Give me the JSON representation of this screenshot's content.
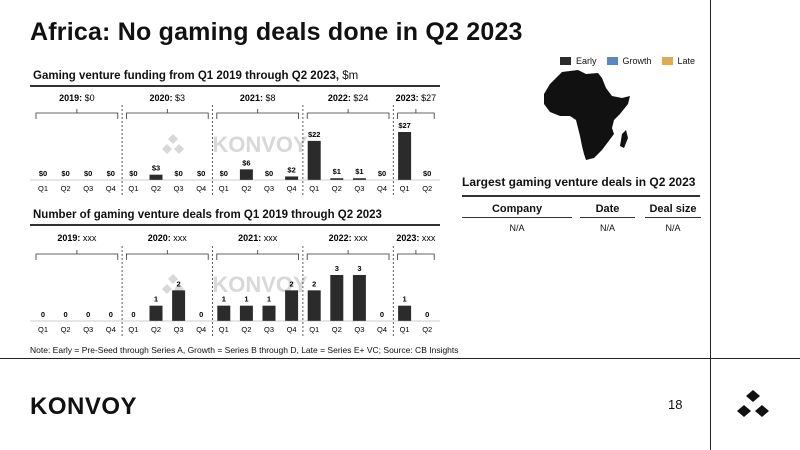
{
  "title": "Africa: No gaming deals done in Q2 2023",
  "legend": [
    {
      "label": "Early",
      "color": "#2b2b2b"
    },
    {
      "label": "Growth",
      "color": "#5a86c2"
    },
    {
      "label": "Late",
      "color": "#e0aa4f"
    }
  ],
  "chart_data": [
    {
      "type": "bar",
      "title_bold": "Gaming venture funding from Q1 2019 through Q2 2023,",
      "title_unit": " $m",
      "watermark": "KONVOY",
      "years": [
        {
          "label": "2019:",
          "total": "$0"
        },
        {
          "label": "2020:",
          "total": "$3"
        },
        {
          "label": "2021:",
          "total": "$8"
        },
        {
          "label": "2022:",
          "total": "$24"
        },
        {
          "label": "2023:",
          "total": "$27"
        }
      ],
      "categories": [
        "Q1",
        "Q2",
        "Q3",
        "Q4",
        "Q1",
        "Q2",
        "Q3",
        "Q4",
        "Q1",
        "Q2",
        "Q3",
        "Q4",
        "Q1",
        "Q2",
        "Q3",
        "Q4",
        "Q1",
        "Q2"
      ],
      "values": [
        0,
        0,
        0,
        0,
        0,
        3,
        0,
        0,
        0,
        6,
        0,
        2,
        22,
        1,
        1,
        0,
        27,
        0
      ],
      "value_labels": [
        "$0",
        "$0",
        "$0",
        "$0",
        "$0",
        "$3",
        "$0",
        "$0",
        "$0",
        "$6",
        "$0",
        "$2",
        "$22",
        "$1",
        "$1",
        "$0",
        "$27",
        "$0"
      ],
      "ylim": [
        0,
        27
      ]
    },
    {
      "type": "bar",
      "title_bold": "Number of gaming venture deals from Q1 2019 through Q2 2023",
      "title_unit": "",
      "watermark": "KONVOY",
      "years": [
        {
          "label": "2019:",
          "total": "xxx"
        },
        {
          "label": "2020:",
          "total": "xxx"
        },
        {
          "label": "2021:",
          "total": "xxx"
        },
        {
          "label": "2022:",
          "total": "xxx"
        },
        {
          "label": "2023:",
          "total": "xxx"
        }
      ],
      "categories": [
        "Q1",
        "Q2",
        "Q3",
        "Q4",
        "Q1",
        "Q2",
        "Q3",
        "Q4",
        "Q1",
        "Q2",
        "Q3",
        "Q4",
        "Q1",
        "Q2",
        "Q3",
        "Q4",
        "Q1",
        "Q2"
      ],
      "values": [
        0,
        0,
        0,
        0,
        0,
        1,
        2,
        0,
        1,
        1,
        1,
        2,
        2,
        3,
        3,
        0,
        1,
        0
      ],
      "value_labels": [
        "0",
        "0",
        "0",
        "0",
        "0",
        "1",
        "2",
        "0",
        "1",
        "1",
        "1",
        "2",
        "2",
        "3",
        "3",
        "0",
        "1",
        "0"
      ],
      "ylim": [
        0,
        3
      ]
    }
  ],
  "deals": {
    "title": "Largest gaming venture deals in Q2 2023",
    "headers": [
      "Company",
      "Date",
      "Deal size"
    ],
    "row": [
      "N/A",
      "N/A",
      "N/A"
    ]
  },
  "note": "Note: Early = Pre-Seed through Series A, Growth = Series B through D, Late = Series E+ VC; Source: CB Insights",
  "footer": {
    "logo": "KONVOY",
    "page": "18"
  }
}
